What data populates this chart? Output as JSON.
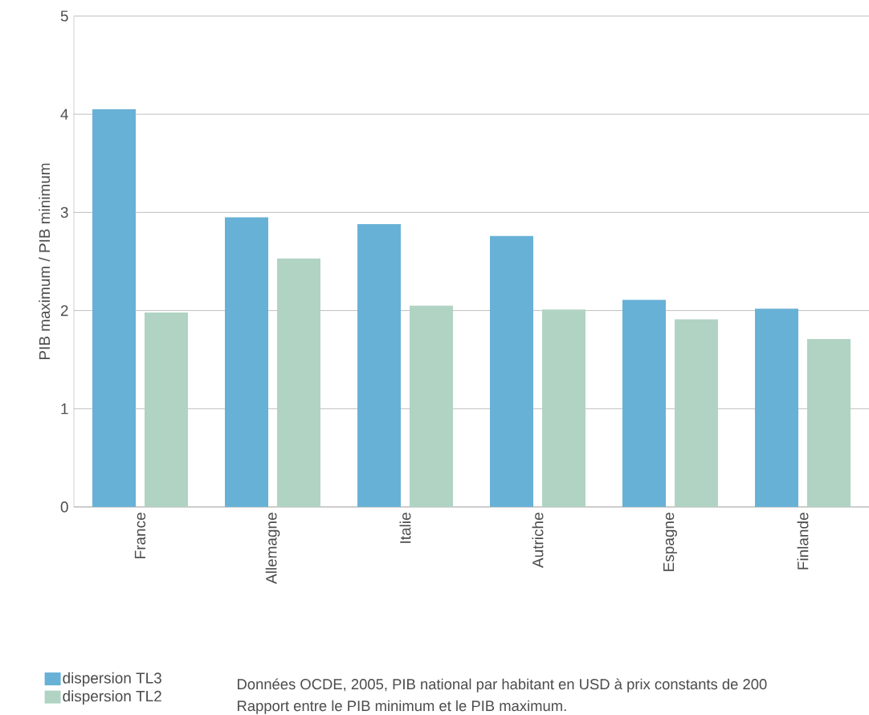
{
  "chart_data": {
    "type": "bar",
    "ylabel": "PIB maximum / PIB minimum",
    "categories": [
      "France",
      "Allemagne",
      "Italie",
      "Autriche",
      "Espagne",
      "Finlande"
    ],
    "series": [
      {
        "name": "dispersion TL3",
        "color": "#68b1d6",
        "values": [
          4.05,
          2.95,
          2.88,
          2.76,
          2.11,
          2.02
        ]
      },
      {
        "name": "dispersion TL2",
        "color": "#b0d3c3",
        "values": [
          1.98,
          2.53,
          2.05,
          2.01,
          1.91,
          1.71
        ]
      }
    ],
    "ylim": [
      0,
      5
    ],
    "yticks": [
      0,
      1,
      2,
      3,
      4,
      5
    ],
    "grid": "y",
    "legend": "bottom left",
    "annotations": [
      "Données OCDE, 2005, PIB national par habitant en USD à prix constants de 200",
      "Rapport entre le PIB minimum et le PIB maximum."
    ]
  }
}
